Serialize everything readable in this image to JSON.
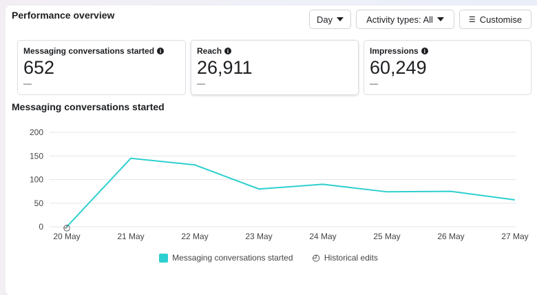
{
  "header": {
    "title": "Performance overview",
    "day_label": "Day",
    "activity_label": "Activity types: All",
    "customise_label": "Customise"
  },
  "metrics": [
    {
      "label": "Messaging conversations started",
      "value": "652",
      "delta": "—"
    },
    {
      "label": "Reach",
      "value": "26,911",
      "delta": "—"
    },
    {
      "label": "Impressions",
      "value": "60,249",
      "delta": "—"
    }
  ],
  "chart_data": {
    "type": "line",
    "title": "Messaging conversations started",
    "categories": [
      "20 May",
      "21 May",
      "22 May",
      "23 May",
      "24 May",
      "25 May",
      "26 May",
      "27 May"
    ],
    "series": [
      {
        "name": "Messaging conversations started",
        "values": [
          0,
          145,
          131,
          80,
          90,
          74,
          75,
          57
        ],
        "color": "#2ecfcf"
      }
    ],
    "yticks": [
      "0",
      "50",
      "100",
      "150",
      "200"
    ],
    "ylim": [
      0,
      200
    ],
    "grid": true,
    "legend": {
      "position": "bottom",
      "items": [
        "Messaging conversations started",
        "Historical edits"
      ]
    }
  }
}
